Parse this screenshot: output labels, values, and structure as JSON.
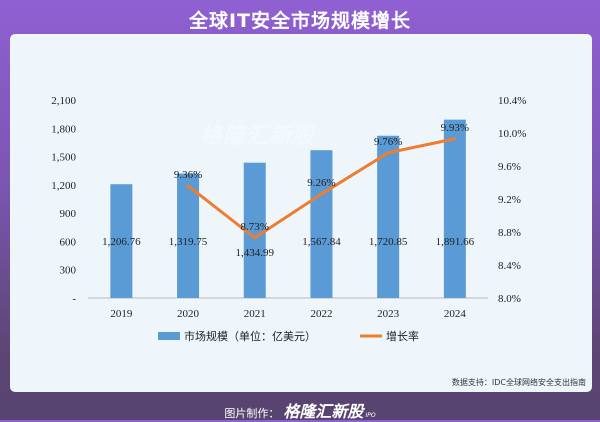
{
  "title": "全球IT安全市场规模增长",
  "source": "数据支持：IDC全球网络安全支出指南",
  "footer": {
    "label": "图片制作：",
    "brand": "格隆汇新股",
    "ipo": "IPO"
  },
  "watermark": "格隆汇新股",
  "chart_data": {
    "type": "bar+line",
    "categories": [
      "2019",
      "2020",
      "2021",
      "2022",
      "2023",
      "2024"
    ],
    "series": [
      {
        "name": "市场规模（单位：亿美元）",
        "type": "bar",
        "axis": "left",
        "color": "#5b9bd5",
        "values": [
          1206.76,
          1319.75,
          1434.99,
          1567.84,
          1720.85,
          1891.66
        ],
        "labels": [
          "1,206.76",
          "1,319.75",
          "1,434.99",
          "1,567.84",
          "1,720.85",
          "1,891.66"
        ]
      },
      {
        "name": "增长率",
        "type": "line",
        "axis": "right",
        "color": "#ed7d31",
        "values": [
          null,
          9.36,
          8.73,
          9.26,
          9.76,
          9.93
        ],
        "labels": [
          "",
          "9.36%",
          "8.73%",
          "9.26%",
          "9.76%",
          "9.93%"
        ]
      }
    ],
    "ylim_left": [
      0,
      2100
    ],
    "yticks_left": [
      "-",
      "300",
      "600",
      "900",
      "1,200",
      "1,500",
      "1,800",
      "2,100"
    ],
    "ylim_right": [
      8.0,
      10.4
    ],
    "yticks_right": [
      "8.0%",
      "8.4%",
      "8.8%",
      "9.2%",
      "9.6%",
      "10.0%",
      "10.4%"
    ],
    "legend": "bottom",
    "grid": false
  }
}
